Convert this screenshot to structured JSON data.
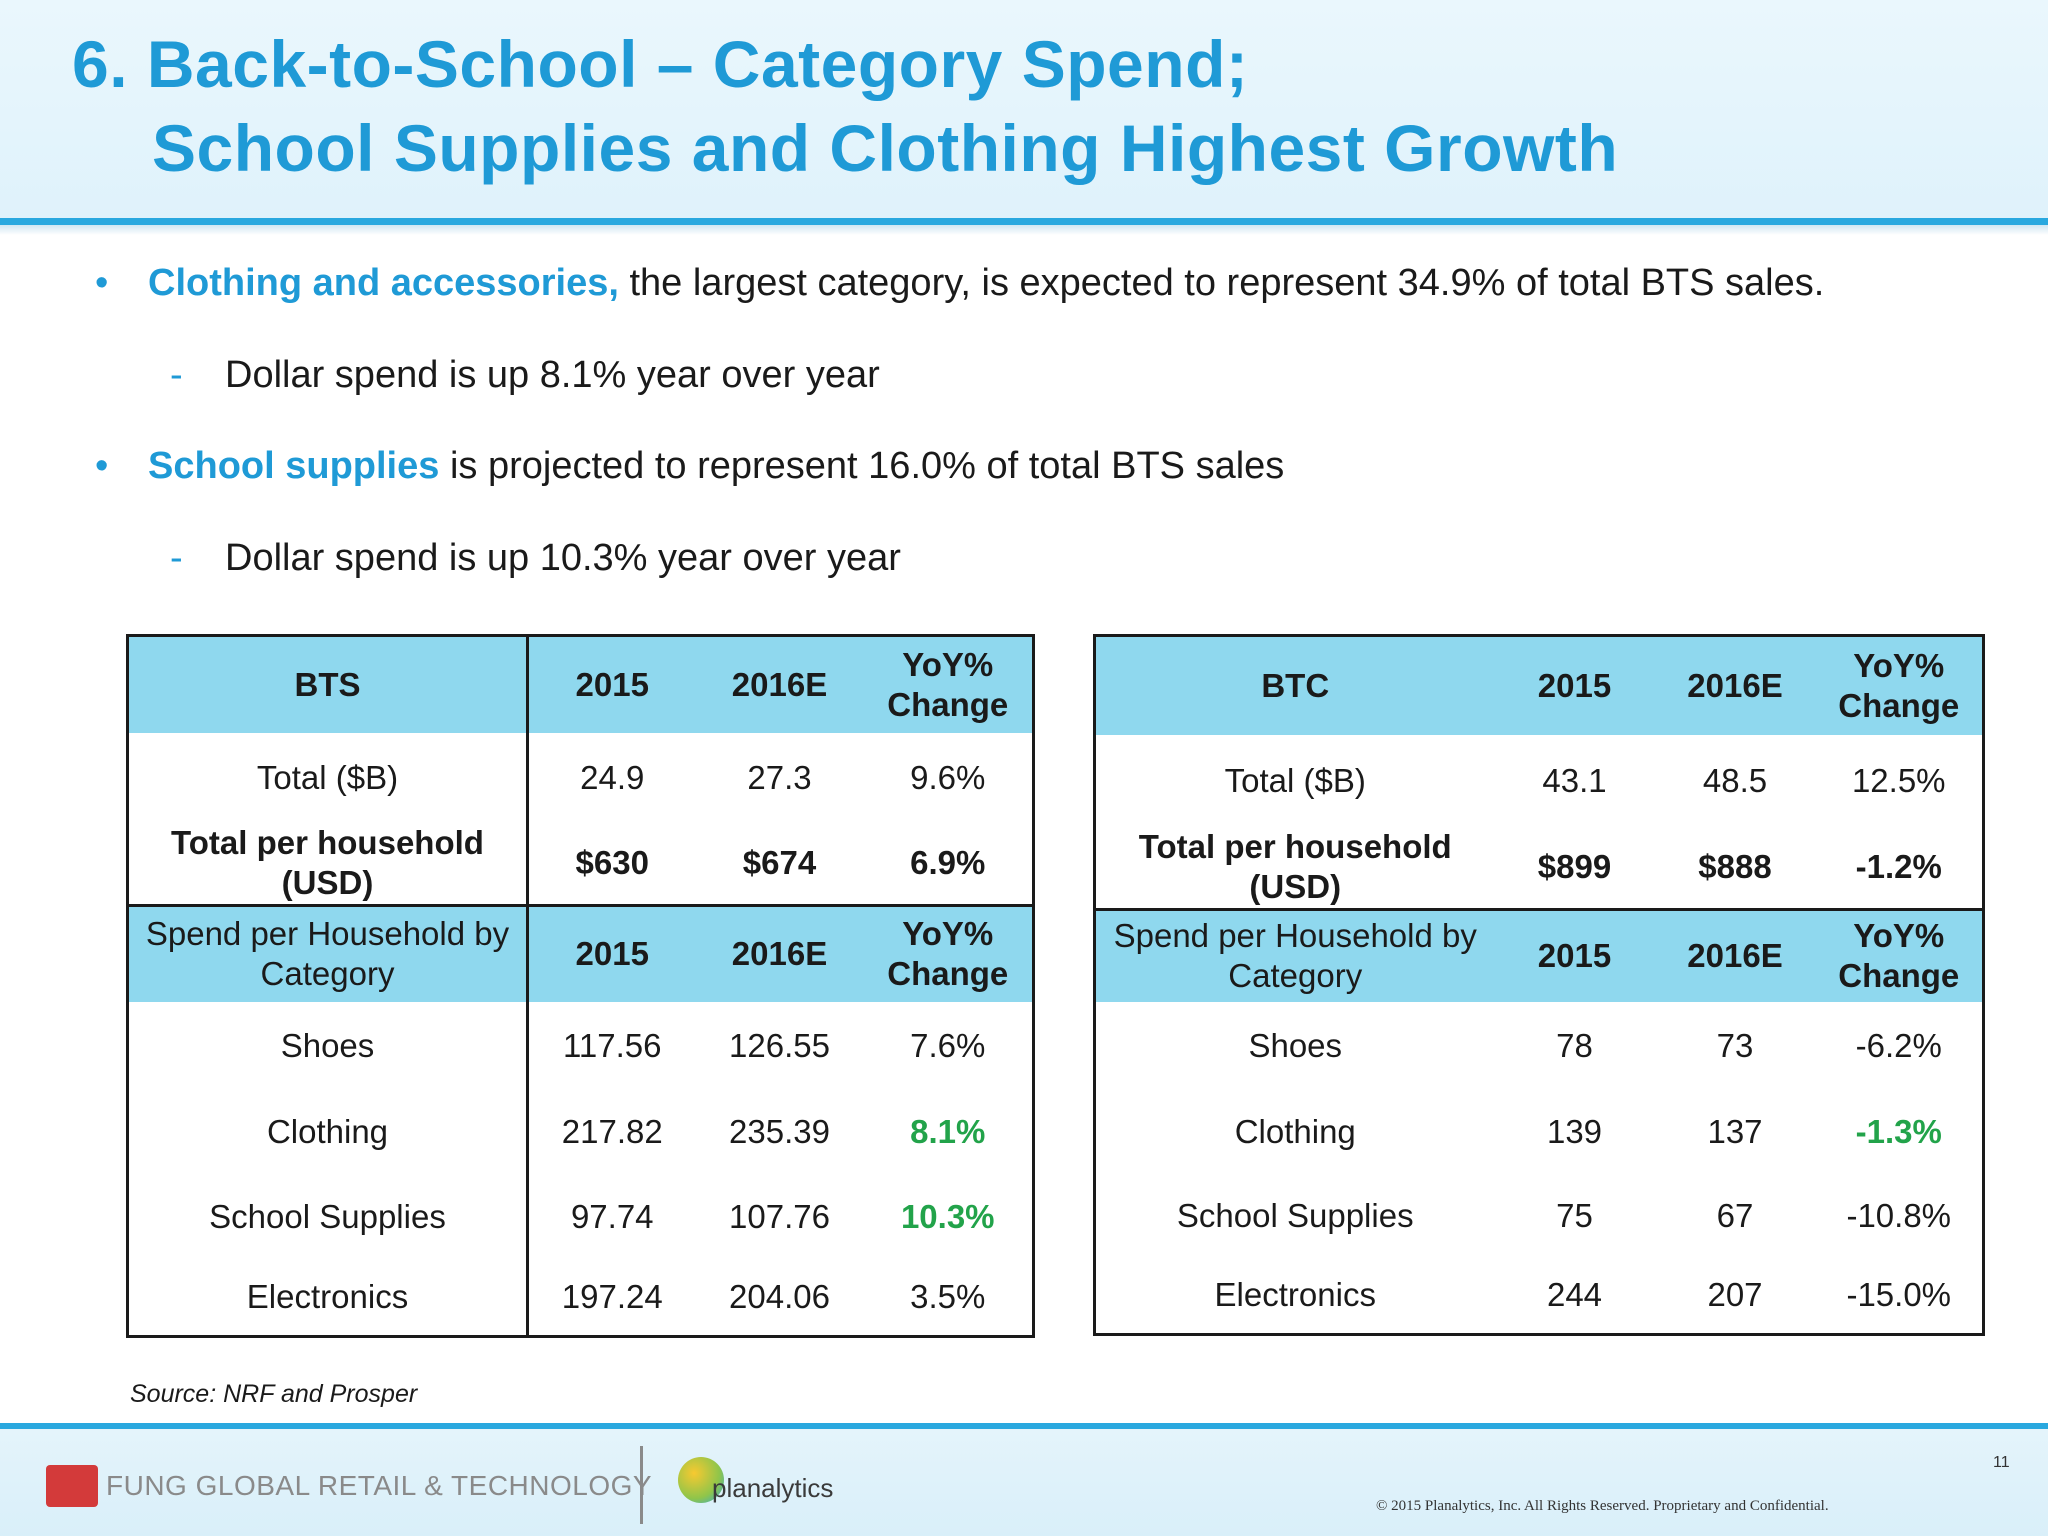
{
  "header": {
    "title_line1": "6. Back-to-School – Category Spend;",
    "title_line2": "School Supplies and Clothing Highest Growth"
  },
  "bullets": {
    "b1_highlight": "Clothing and accessories,",
    "b1_rest": " the largest category, is expected to represent 34.9% of total BTS sales.",
    "b1_sub": "Dollar spend is up 8.1% year over year",
    "b2_highlight": "School supplies",
    "b2_rest": " is projected to represent 16.0% of total BTS sales",
    "b2_sub": "Dollar spend is up 10.3% year over year",
    "dot": "•",
    "dash": "-"
  },
  "bts_table": {
    "header": [
      "BTS",
      "2015",
      "2016E",
      "YoY% Change"
    ],
    "total": [
      "Total ($B)",
      "24.9",
      "27.3",
      "9.6%"
    ],
    "per_household": [
      "Total per household (USD)",
      "$630",
      "$674",
      "6.9%"
    ],
    "sub_header": [
      "Spend per Household by Category",
      "2015",
      "2016E",
      "YoY% Change"
    ],
    "rows": [
      [
        "Shoes",
        "117.56",
        "126.55",
        "7.6%"
      ],
      [
        "Clothing",
        "217.82",
        "235.39",
        "8.1%"
      ],
      [
        "School Supplies",
        "97.74",
        "107.76",
        "10.3%"
      ],
      [
        "Electronics",
        "197.24",
        "204.06",
        "3.5%"
      ]
    ]
  },
  "btc_table": {
    "header": [
      "BTC",
      "2015",
      "2016E",
      "YoY% Change"
    ],
    "total": [
      "Total ($B)",
      "43.1",
      "48.5",
      "12.5%"
    ],
    "per_household": [
      "Total per household (USD)",
      "$899",
      "$888",
      "-1.2%"
    ],
    "sub_header": [
      "Spend per Household by Category",
      "2015",
      "2016E",
      "YoY% Change"
    ],
    "rows": [
      [
        "Shoes",
        "78",
        "73",
        "-6.2%"
      ],
      [
        "Clothing",
        "139",
        "137",
        "-1.3%"
      ],
      [
        "School Supplies",
        "75",
        "67",
        "-10.8%"
      ],
      [
        "Electronics",
        "244",
        "207",
        "-15.0%"
      ]
    ]
  },
  "source": "Source: NRF and Prosper",
  "footer": {
    "fung_logo": "FUNG GLOBAL RETAIL & TECHNOLOGY",
    "planalytics_logo": "planalytics",
    "page_number": "11",
    "copyright": "© 2015 Planalytics, Inc. All Rights Reserved. Proprietary and Confidential."
  },
  "colors": {
    "title_blue": "#1f9ad6",
    "table_header": "#8fd8ee",
    "positive_green": "#22a34a"
  }
}
